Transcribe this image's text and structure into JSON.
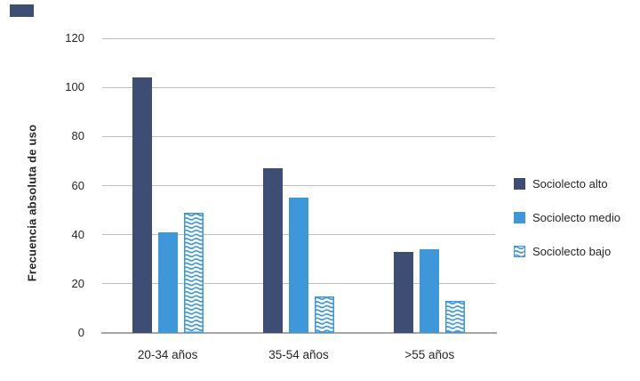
{
  "page": {
    "background": "#FFFFFF"
  },
  "corner_mark": {
    "color": "#3E4D73"
  },
  "colors": {
    "gridline": "#BFBFBF",
    "axis_line": "#A6A6A6",
    "text": "#262626",
    "navy": "#3E4D73",
    "blue": "#3D97D9"
  },
  "chart_data": {
    "type": "bar",
    "title": "",
    "xlabel": "",
    "ylabel": "Frecuencia absoluta de uso",
    "categories": [
      "20-34 años",
      "35-54 años",
      ">55 años"
    ],
    "series": [
      {
        "name": "Sociolecto alto",
        "values": [
          104,
          67,
          33
        ],
        "color": "#3E4D73",
        "pattern": "solid"
      },
      {
        "name": "Sociolecto medio",
        "values": [
          41,
          55,
          34
        ],
        "color": "#3D97D9",
        "pattern": "solid"
      },
      {
        "name": "Sociolecto bajo",
        "values": [
          49,
          15,
          13
        ],
        "color": "#3D97D9",
        "pattern": "wave"
      }
    ],
    "ylim": [
      0,
      120
    ],
    "yticks": [
      0,
      20,
      40,
      60,
      80,
      100,
      120
    ],
    "grid": true,
    "legend_position": "right"
  }
}
